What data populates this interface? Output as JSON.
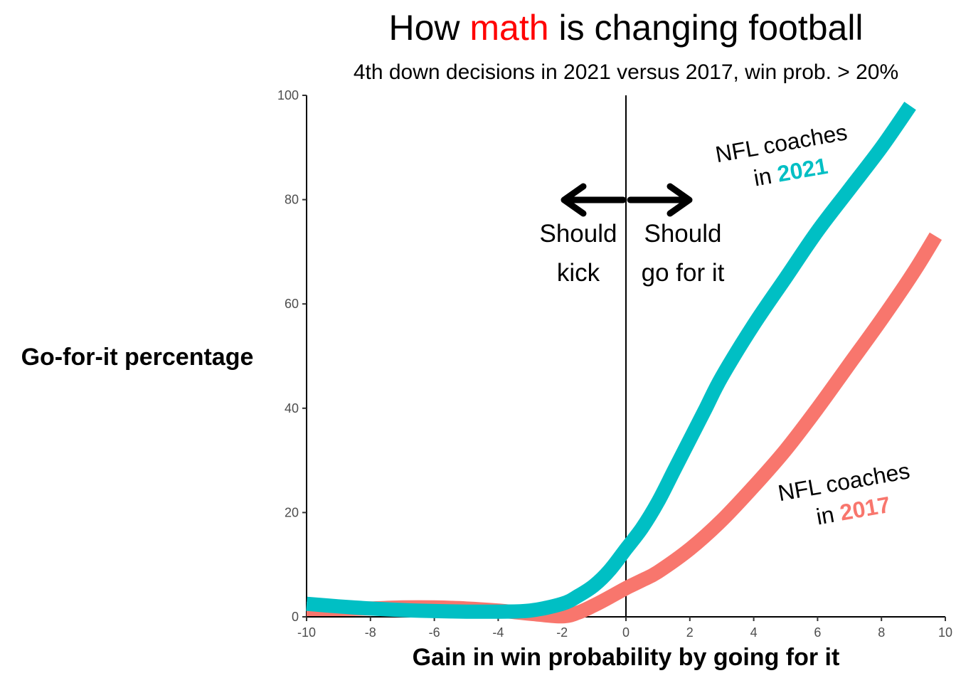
{
  "chart_data": {
    "type": "line",
    "title": {
      "before": "How ",
      "highlight": "math",
      "after": " is changing football",
      "highlight_color": "#ff0000"
    },
    "subtitle": "4th down decisions in 2021 versus 2017, win prob. > 20%",
    "xlabel": "Gain in win probability by going for it",
    "ylabel": "Go-for-it percentage",
    "xlim": [
      -10,
      10
    ],
    "ylim": [
      0,
      100
    ],
    "x_ticks": [
      -10,
      -8,
      -6,
      -4,
      -2,
      0,
      2,
      4,
      6,
      8,
      10
    ],
    "y_ticks": [
      0,
      20,
      40,
      60,
      80,
      100
    ],
    "grid": false,
    "legend": "none",
    "series": [
      {
        "name": "2017",
        "color": "#f8766d",
        "x": [
          -10,
          -9,
          -8,
          -7,
          -6,
          -5,
          -4,
          -3,
          -2,
          -1.5,
          -1,
          -0.5,
          0,
          0.5,
          1,
          2,
          3,
          4,
          5,
          6,
          7,
          8,
          9,
          9.7
        ],
        "y": [
          1.5,
          1.5,
          1.6,
          1.8,
          1.8,
          1.6,
          1.2,
          0.6,
          0.1,
          0.8,
          2.2,
          3.8,
          5.5,
          7,
          8.6,
          13,
          18.5,
          25,
          32,
          40,
          48.5,
          57,
          66,
          73
        ]
      },
      {
        "name": "2021",
        "color": "#00bfc4",
        "x": [
          -10,
          -9,
          -8,
          -7,
          -6,
          -5,
          -4,
          -3,
          -2,
          -1.5,
          -1,
          -0.5,
          0,
          0.5,
          1,
          1.5,
          2,
          2.5,
          3,
          4,
          5,
          6,
          7,
          8,
          8.9
        ],
        "y": [
          2.5,
          2,
          1.6,
          1.3,
          1.1,
          1,
          1,
          1.2,
          2.5,
          4,
          6,
          9,
          13,
          17,
          22,
          28,
          34,
          40,
          46,
          56,
          65,
          74,
          82,
          90,
          98
        ]
      }
    ],
    "annotations": {
      "kick_text": [
        "Should",
        "kick"
      ],
      "go_text": [
        "Should",
        "go for it"
      ],
      "label_2021": {
        "line1": "NFL coaches",
        "prefix": "in ",
        "year": "2021"
      },
      "label_2017": {
        "line1": "NFL coaches",
        "prefix": "in ",
        "year": "2017"
      }
    },
    "vline_x": 0
  }
}
